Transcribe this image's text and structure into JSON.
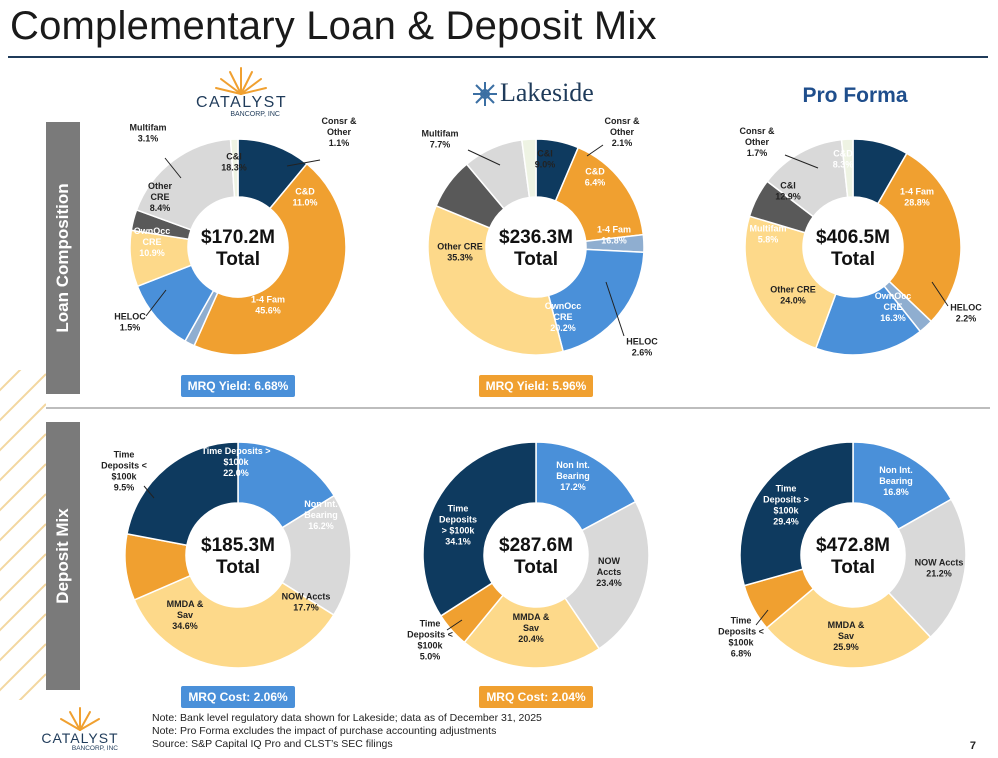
{
  "slide": {
    "title": "Complementary Loan & Deposit Mix",
    "page_number": "7"
  },
  "logos": {
    "catalyst_name": "CATALYST",
    "catalyst_sub": "BANCORP, INC",
    "lakeside_name": "Lakeside",
    "pro_forma": "Pro Forma"
  },
  "row_labels": {
    "loan": "Loan Composition",
    "deposit": "Deposit Mix"
  },
  "pills": {
    "catalyst_yield": "MRQ Yield: 6.68%",
    "lakeside_yield": "MRQ Yield: 5.96%",
    "catalyst_cost": "MRQ Cost: 2.06%",
    "lakeside_cost": "MRQ Cost: 2.04%"
  },
  "colors": {
    "navy": "#0e3a5f",
    "orange": "#f0a030",
    "blue": "#4a90d9",
    "light_gray": "#d9d9d9",
    "dark_gray": "#595959",
    "light_yellow": "#fdd98a",
    "steel": "#8faed0",
    "pale_green": "#eef3e3",
    "title_rule": "#1f3b5a",
    "side_gray": "#7a7a7a"
  },
  "footnotes": [
    "Note: Bank level regulatory data shown for Lakeside; data as of December 31, 2025",
    "Note: Pro Forma excludes the impact of purchase accounting adjustments",
    "Source: S&P Capital IQ Pro and CLST’s SEC filings"
  ],
  "chart_data": [
    {
      "type": "pie",
      "title": "Catalyst Loan Composition",
      "center_value": "$170.2M",
      "center_label": "Total",
      "slices": [
        {
          "label": [
            "C&D"
          ],
          "value": 11.0,
          "pct": "11.0%",
          "color": "#0e3a5f"
        },
        {
          "label": [
            "1-4 Fam"
          ],
          "value": 45.6,
          "pct": "45.6%",
          "color": "#f0a030"
        },
        {
          "label": [
            "HELOC"
          ],
          "value": 1.5,
          "pct": "1.5%",
          "color": "#8faed0"
        },
        {
          "label": [
            "OwnOcc",
            "CRE"
          ],
          "value": 10.9,
          "pct": "10.9%",
          "color": "#4a90d9"
        },
        {
          "label": [
            "Other",
            "CRE"
          ],
          "value": 8.4,
          "pct": "8.4%",
          "color": "#fdd98a"
        },
        {
          "label": [
            "Multifam"
          ],
          "value": 3.1,
          "pct": "3.1%",
          "color": "#595959"
        },
        {
          "label": [
            "C&I"
          ],
          "value": 18.3,
          "pct": "18.3%",
          "color": "#d9d9d9"
        },
        {
          "label": [
            "Consr &",
            "Other"
          ],
          "value": 1.1,
          "pct": "1.1%",
          "color": "#eef3e3"
        }
      ]
    },
    {
      "type": "pie",
      "title": "Lakeside Loan Composition",
      "center_value": "$236.3M",
      "center_label": "Total",
      "slices": [
        {
          "label": [
            "C&D"
          ],
          "value": 6.4,
          "pct": "6.4%",
          "color": "#0e3a5f"
        },
        {
          "label": [
            "1-4 Fam"
          ],
          "value": 16.8,
          "pct": "16.8%",
          "color": "#f0a030"
        },
        {
          "label": [
            "HELOC"
          ],
          "value": 2.6,
          "pct": "2.6%",
          "color": "#8faed0"
        },
        {
          "label": [
            "OwnOcc",
            "CRE"
          ],
          "value": 20.2,
          "pct": "20.2%",
          "color": "#4a90d9"
        },
        {
          "label": [
            "Other CRE"
          ],
          "value": 35.3,
          "pct": "35.3%",
          "color": "#fdd98a"
        },
        {
          "label": [
            "Multifam"
          ],
          "value": 7.7,
          "pct": "7.7%",
          "color": "#595959"
        },
        {
          "label": [
            "C&I"
          ],
          "value": 9.0,
          "pct": "9.0%",
          "color": "#d9d9d9"
        },
        {
          "label": [
            "Consr &",
            "Other"
          ],
          "value": 2.1,
          "pct": "2.1%",
          "color": "#eef3e3"
        }
      ]
    },
    {
      "type": "pie",
      "title": "Pro Forma Loan Composition",
      "center_value": "$406.5M",
      "center_label": "Total",
      "slices": [
        {
          "label": [
            "C&D"
          ],
          "value": 8.3,
          "pct": "8.3%",
          "color": "#0e3a5f"
        },
        {
          "label": [
            "1-4 Fam"
          ],
          "value": 28.8,
          "pct": "28.8%",
          "color": "#f0a030"
        },
        {
          "label": [
            "HELOC"
          ],
          "value": 2.2,
          "pct": "2.2%",
          "color": "#8faed0"
        },
        {
          "label": [
            "OwnOcc",
            "CRE"
          ],
          "value": 16.3,
          "pct": "16.3%",
          "color": "#4a90d9"
        },
        {
          "label": [
            "Other CRE"
          ],
          "value": 24.0,
          "pct": "24.0%",
          "color": "#fdd98a"
        },
        {
          "label": [
            "Multifam"
          ],
          "value": 5.8,
          "pct": "5.8%",
          "color": "#595959"
        },
        {
          "label": [
            "C&I"
          ],
          "value": 12.9,
          "pct": "12.9%",
          "color": "#d9d9d9"
        },
        {
          "label": [
            "Consr &",
            "Other"
          ],
          "value": 1.7,
          "pct": "1.7%",
          "color": "#eef3e3"
        }
      ]
    },
    {
      "type": "pie",
      "title": "Catalyst Deposit Mix",
      "center_value": "$185.3M",
      "center_label": "Total",
      "slices": [
        {
          "label": [
            "Non Int.",
            "Bearing"
          ],
          "value": 16.2,
          "pct": "16.2%",
          "color": "#4a90d9"
        },
        {
          "label": [
            "NOW Accts"
          ],
          "value": 17.7,
          "pct": "17.7%",
          "color": "#d9d9d9"
        },
        {
          "label": [
            "MMDA &",
            "Sav"
          ],
          "value": 34.6,
          "pct": "34.6%",
          "color": "#fdd98a"
        },
        {
          "label": [
            "Time",
            "Deposits <",
            "$100k"
          ],
          "value": 9.5,
          "pct": "9.5%",
          "color": "#f0a030"
        },
        {
          "label": [
            "Time Deposits >",
            "$100k"
          ],
          "value": 22.0,
          "pct": "22.0%",
          "color": "#0e3a5f"
        }
      ]
    },
    {
      "type": "pie",
      "title": "Lakeside Deposit Mix",
      "center_value": "$287.6M",
      "center_label": "Total",
      "slices": [
        {
          "label": [
            "Non Int.",
            "Bearing"
          ],
          "value": 17.2,
          "pct": "17.2%",
          "color": "#4a90d9"
        },
        {
          "label": [
            "NOW",
            "Accts"
          ],
          "value": 23.4,
          "pct": "23.4%",
          "color": "#d9d9d9"
        },
        {
          "label": [
            "MMDA &",
            "Sav"
          ],
          "value": 20.4,
          "pct": "20.4%",
          "color": "#fdd98a"
        },
        {
          "label": [
            "Time",
            "Deposits <",
            "$100k"
          ],
          "value": 5.0,
          "pct": "5.0%",
          "color": "#f0a030"
        },
        {
          "label": [
            "Time",
            "Deposits",
            "> $100k"
          ],
          "value": 34.1,
          "pct": "34.1%",
          "color": "#0e3a5f"
        }
      ]
    },
    {
      "type": "pie",
      "title": "Pro Forma Deposit Mix",
      "center_value": "$472.8M",
      "center_label": "Total",
      "slices": [
        {
          "label": [
            "Non Int.",
            "Bearing"
          ],
          "value": 16.8,
          "pct": "16.8%",
          "color": "#4a90d9"
        },
        {
          "label": [
            "NOW Accts"
          ],
          "value": 21.2,
          "pct": "21.2%",
          "color": "#d9d9d9"
        },
        {
          "label": [
            "MMDA &",
            "Sav"
          ],
          "value": 25.9,
          "pct": "25.9%",
          "color": "#fdd98a"
        },
        {
          "label": [
            "Time",
            "Deposits <",
            "$100k"
          ],
          "value": 6.8,
          "pct": "6.8%",
          "color": "#f0a030"
        },
        {
          "label": [
            "Time",
            "Deposits >",
            "$100k"
          ],
          "value": 29.4,
          "pct": "29.4%",
          "color": "#0e3a5f"
        }
      ]
    }
  ]
}
